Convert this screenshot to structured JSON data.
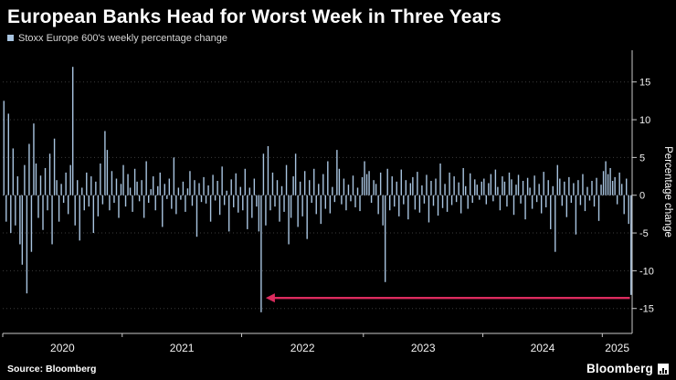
{
  "header": {
    "title": "European Banks Head for Worst Week in Three Years",
    "legend_label": "Stoxx Europe 600's weekly percentage change"
  },
  "footer": {
    "source": "Source: Bloomberg",
    "brand": "Bloomberg"
  },
  "colors": {
    "background": "#000000",
    "bar": "#a8c4e0",
    "arrow": "#dc2b5e",
    "grid": "#3c3c3c",
    "zero_grid": "#6e6e6e",
    "axis": "#c8c8c8",
    "tick_text": "#f2f2f2"
  },
  "chart_data": {
    "type": "bar",
    "title": "European Banks Head for Worst Week in Three Years",
    "series_name": "Stoxx Europe 600's weekly percentage change",
    "xlabel": "",
    "ylabel": "Percentage change",
    "yaxis": {
      "min": -18.3,
      "max": 19.2,
      "ticks": [
        15,
        10,
        5,
        0,
        -5,
        -10,
        -15
      ]
    },
    "grid": "dotted-horizontal",
    "legend_position": "top-left",
    "year_labels": [
      "2020",
      "2021",
      "2022",
      "2023",
      "2024",
      "2025"
    ],
    "year_start_weeks": [
      0,
      52,
      104,
      157,
      209,
      261
    ],
    "values": [
      12.5,
      -3.5,
      10.8,
      -5.0,
      6.2,
      -4.0,
      2.5,
      -6.5,
      -9.2,
      4.0,
      -13.0,
      6.8,
      -7.5,
      9.5,
      4.2,
      -3.0,
      2.6,
      -4.6,
      3.6,
      -2.0,
      5.5,
      -6.5,
      7.5,
      2.0,
      -3.5,
      1.5,
      -1.0,
      3.0,
      -2.5,
      4.0,
      17.0,
      -4.0,
      2.0,
      -6.0,
      1.0,
      -2.0,
      3.0,
      -1.5,
      2.5,
      -5.0,
      1.8,
      -2.8,
      4.2,
      -1.2,
      8.5,
      6.0,
      -2.0,
      3.2,
      -1.0,
      2.2,
      -3.0,
      1.5,
      4.0,
      -1.5,
      2.8,
      1.0,
      -2.2,
      3.5,
      1.8,
      -0.8,
      2.0,
      -3.0,
      4.5,
      -1.0,
      0.8,
      2.5,
      -2.0,
      1.2,
      3.0,
      -4.2,
      1.5,
      -0.5,
      2.2,
      -1.8,
      5.0,
      -2.5,
      1.0,
      -0.6,
      1.8,
      -2.2,
      0.9,
      3.2,
      -1.4,
      2.0,
      -5.5,
      1.6,
      -0.9,
      2.4,
      -1.1,
      1.3,
      -3.5,
      2.7,
      -0.7,
      1.9,
      -2.6,
      3.8,
      -1.3,
      0.6,
      -4.8,
      2.1,
      -1.6,
      2.9,
      -2.3,
      1.1,
      -2.0,
      3.5,
      -4.5,
      1.0,
      -3.0,
      2.2,
      -1.5,
      -4.8,
      -15.5,
      5.5,
      -4.0,
      6.5,
      -2.0,
      3.0,
      -1.5,
      2.0,
      -3.5,
      1.2,
      -2.2,
      4.0,
      -6.5,
      -3.0,
      2.5,
      5.5,
      -4.2,
      1.8,
      -2.8,
      3.2,
      -5.8,
      2.0,
      -1.0,
      3.5,
      -2.5,
      1.5,
      -3.8,
      2.8,
      -1.8,
      4.5,
      -2.4,
      1.1,
      -0.9,
      6.0,
      3.5,
      -1.2,
      2.2,
      -2.0,
      1.4,
      -0.8,
      2.6,
      -1.6,
      1.0,
      -2.1,
      2.4,
      4.5,
      2.8,
      3.2,
      -1.0,
      2.0,
      1.5,
      -2.5,
      3.0,
      -4.0,
      -11.5,
      3.5,
      -2.0,
      2.5,
      -1.5,
      1.8,
      -2.8,
      3.4,
      -1.2,
      2.0,
      -3.2,
      1.6,
      2.4,
      -1.9,
      3.1,
      -2.3,
      1.3,
      -1.1,
      2.7,
      -3.6,
      1.9,
      -1.4,
      2.2,
      -2.7,
      4.2,
      -1.7,
      1.5,
      -2.2,
      3.0,
      -1.3,
      2.5,
      -0.9,
      1.7,
      -2.4,
      3.6,
      1.2,
      -1.8,
      2.9,
      -1.0,
      2.1,
      1.4,
      -0.6,
      1.8,
      2.2,
      -1.2,
      1.6,
      2.8,
      -0.8,
      3.4,
      1.1,
      -2.0,
      2.5,
      1.8,
      -1.5,
      3.0,
      2.1,
      -2.6,
      1.4,
      2.7,
      -1.1,
      1.9,
      -3.2,
      2.3,
      1.0,
      -1.8,
      2.6,
      -0.9,
      1.5,
      -2.4,
      3.1,
      -1.6,
      2.0,
      -4.5,
      1.2,
      -7.5,
      4.0,
      2.2,
      -1.4,
      1.8,
      -2.9,
      2.4,
      -1.0,
      1.6,
      -5.2,
      2.0,
      -1.3,
      2.8,
      -2.1,
      1.1,
      -0.7,
      1.9,
      -1.5,
      2.3,
      -3.4,
      1.4,
      3.2,
      4.5,
      2.8,
      3.6,
      1.9,
      2.4,
      -1.2,
      3.0,
      1.5,
      -2.5,
      2.2,
      -3.8,
      -13.2
    ],
    "annotation": {
      "type": "arrow-left",
      "y_value": -13.6,
      "tip_week": 114,
      "tail_week": 272.5,
      "color": "#dc2b5e"
    }
  }
}
